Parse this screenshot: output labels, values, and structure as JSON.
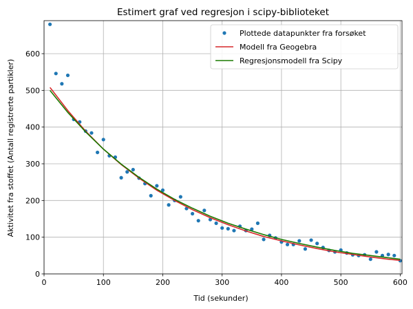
{
  "chart_data": {
    "type": "scatter",
    "title": "Estimert graf ved regresjon i scipy-biblioteket",
    "xlabel": "Tid (sekunder)",
    "ylabel": "Aktivitet fra stoffet (Antall registrerte partikler)",
    "xlim": [
      0,
      603
    ],
    "ylim": [
      0,
      690
    ],
    "xticks": [
      0,
      100,
      200,
      300,
      400,
      500,
      600
    ],
    "yticks": [
      0,
      100,
      200,
      300,
      400,
      500,
      600
    ],
    "grid": true,
    "legend_position": "top-right",
    "series": [
      {
        "name": "Plottede datapunkter fra forsøket",
        "kind": "points",
        "color": "#1f77b4",
        "x": [
          10,
          20,
          30,
          40,
          50,
          60,
          70,
          80,
          90,
          100,
          110,
          120,
          130,
          140,
          150,
          160,
          170,
          180,
          190,
          200,
          210,
          220,
          230,
          240,
          250,
          260,
          270,
          280,
          290,
          300,
          310,
          320,
          330,
          340,
          350,
          360,
          370,
          380,
          390,
          400,
          410,
          420,
          430,
          440,
          450,
          460,
          470,
          480,
          490,
          500,
          510,
          520,
          530,
          540,
          550,
          560,
          570,
          580,
          590,
          600
        ],
        "y": [
          680,
          546,
          518,
          541,
          421,
          414,
          389,
          384,
          331,
          366,
          322,
          318,
          262,
          278,
          284,
          261,
          246,
          213,
          240,
          228,
          188,
          200,
          210,
          178,
          164,
          145,
          173,
          148,
          138,
          125,
          123,
          118,
          130,
          118,
          122,
          138,
          94,
          105,
          98,
          87,
          80,
          80,
          90,
          68,
          92,
          83,
          72,
          64,
          60,
          65,
          57,
          52,
          50,
          52,
          40,
          60,
          50,
          53,
          50,
          36
        ]
      },
      {
        "name": "Modell fra Geogebra",
        "kind": "line",
        "color": "#d62728",
        "x": [
          10,
          40,
          70,
          100,
          130,
          160,
          190,
          220,
          250,
          280,
          310,
          340,
          370,
          400,
          430,
          460,
          490,
          520,
          550,
          580,
          600
        ],
        "y": [
          508,
          445,
          389,
          340,
          298,
          261,
          228,
          200,
          175,
          153,
          134,
          117,
          102,
          90,
          79,
          69,
          60,
          53,
          46,
          40,
          37
        ]
      },
      {
        "name": "Regresjonsmodell fra Scipy",
        "kind": "line",
        "color": "#1a7a00",
        "x": [
          10,
          40,
          70,
          100,
          130,
          160,
          190,
          220,
          250,
          280,
          310,
          340,
          370,
          400,
          430,
          460,
          490,
          520,
          550,
          580,
          600
        ],
        "y": [
          500,
          440,
          387,
          340,
          299,
          263,
          231,
          203,
          179,
          157,
          138,
          122,
          107,
          94,
          83,
          73,
          64,
          56,
          50,
          44,
          40
        ]
      }
    ]
  }
}
